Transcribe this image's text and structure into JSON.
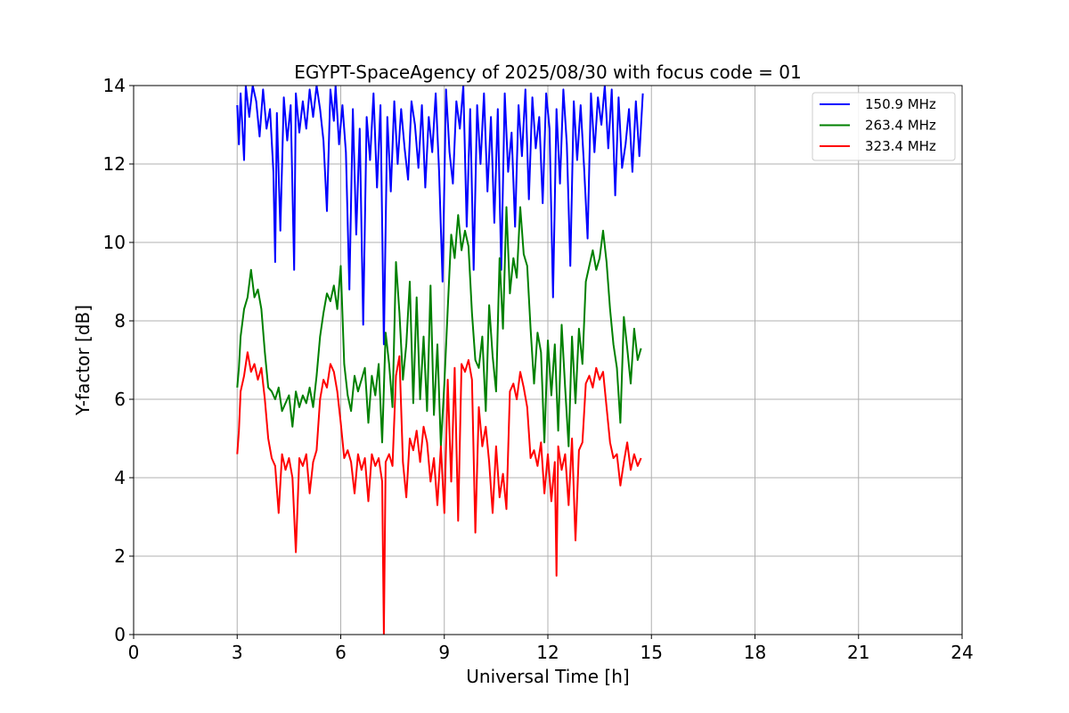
{
  "chart_data": {
    "type": "line",
    "title": "EGYPT-SpaceAgency of 2025/08/30 with focus code = 01",
    "xlabel": "Universal Time [h]",
    "ylabel": "Y-factor [dB]",
    "xlim": [
      0,
      24
    ],
    "ylim": [
      0,
      14
    ],
    "xticks": [
      0,
      3,
      6,
      9,
      12,
      15,
      18,
      21,
      24
    ],
    "yticks": [
      0,
      2,
      4,
      6,
      8,
      10,
      12,
      14
    ],
    "grid": true,
    "legend_position": "top-right",
    "series": [
      {
        "name": "150.9 MHz",
        "color": "#0000ff",
        "x": [
          3.0,
          3.05,
          3.1,
          3.2,
          3.25,
          3.35,
          3.45,
          3.55,
          3.65,
          3.75,
          3.85,
          3.95,
          4.05,
          4.1,
          4.15,
          4.25,
          4.35,
          4.45,
          4.55,
          4.65,
          4.7,
          4.8,
          4.9,
          5.0,
          5.1,
          5.2,
          5.3,
          5.4,
          5.5,
          5.6,
          5.7,
          5.8,
          5.85,
          5.95,
          6.05,
          6.15,
          6.25,
          6.35,
          6.45,
          6.55,
          6.65,
          6.75,
          6.85,
          6.95,
          7.05,
          7.15,
          7.25,
          7.35,
          7.45,
          7.55,
          7.65,
          7.75,
          7.85,
          7.95,
          8.05,
          8.15,
          8.25,
          8.35,
          8.45,
          8.55,
          8.65,
          8.75,
          8.85,
          8.95,
          9.05,
          9.15,
          9.25,
          9.35,
          9.45,
          9.55,
          9.65,
          9.75,
          9.85,
          9.95,
          10.05,
          10.15,
          10.25,
          10.35,
          10.45,
          10.55,
          10.65,
          10.75,
          10.85,
          10.95,
          11.05,
          11.15,
          11.25,
          11.35,
          11.45,
          11.55,
          11.65,
          11.75,
          11.85,
          11.95,
          12.05,
          12.15,
          12.25,
          12.35,
          12.45,
          12.55,
          12.65,
          12.75,
          12.85,
          12.95,
          13.05,
          13.15,
          13.25,
          13.35,
          13.45,
          13.55,
          13.65,
          13.75,
          13.85,
          13.95,
          14.05,
          14.15,
          14.25,
          14.35,
          14.45,
          14.55,
          14.65,
          14.75
        ],
        "y": [
          13.5,
          12.5,
          13.8,
          12.1,
          14.0,
          13.2,
          14.0,
          13.6,
          12.7,
          13.9,
          12.9,
          13.4,
          11.8,
          9.5,
          13.3,
          10.3,
          13.7,
          12.6,
          13.5,
          9.3,
          13.8,
          12.8,
          13.6,
          12.9,
          13.9,
          13.2,
          14.0,
          13.4,
          12.6,
          10.8,
          13.9,
          13.1,
          14.0,
          12.5,
          13.5,
          12.3,
          8.8,
          13.4,
          10.2,
          12.9,
          7.9,
          13.2,
          12.1,
          13.8,
          11.4,
          13.5,
          7.4,
          13.2,
          11.3,
          13.6,
          12.0,
          13.4,
          12.4,
          11.6,
          13.6,
          13.0,
          11.9,
          13.5,
          11.4,
          13.2,
          12.3,
          13.8,
          11.8,
          9.0,
          13.9,
          12.3,
          11.5,
          13.6,
          12.9,
          14.0,
          10.4,
          13.4,
          9.3,
          13.5,
          12.0,
          13.8,
          11.3,
          13.2,
          10.5,
          13.4,
          9.3,
          13.8,
          11.8,
          12.8,
          10.4,
          13.5,
          12.2,
          13.9,
          11.1,
          13.7,
          12.4,
          13.2,
          11.0,
          13.8,
          12.9,
          8.6,
          13.4,
          11.5,
          13.9,
          12.5,
          9.4,
          13.6,
          12.1,
          13.5,
          11.9,
          10.1,
          13.8,
          12.3,
          13.7,
          13.0,
          14.0,
          12.4,
          13.9,
          11.2,
          13.7,
          11.9,
          12.5,
          13.4,
          11.8,
          13.6,
          12.2,
          13.8
        ]
      },
      {
        "name": "263.4 MHz",
        "color": "#008000",
        "x": [
          3.0,
          3.05,
          3.1,
          3.2,
          3.3,
          3.4,
          3.5,
          3.6,
          3.7,
          3.8,
          3.9,
          4.0,
          4.1,
          4.2,
          4.3,
          4.4,
          4.5,
          4.6,
          4.7,
          4.8,
          4.9,
          5.0,
          5.1,
          5.2,
          5.3,
          5.4,
          5.5,
          5.6,
          5.7,
          5.8,
          5.9,
          6.0,
          6.1,
          6.2,
          6.3,
          6.4,
          6.5,
          6.6,
          6.7,
          6.8,
          6.9,
          7.0,
          7.1,
          7.2,
          7.3,
          7.4,
          7.5,
          7.6,
          7.7,
          7.8,
          7.9,
          8.0,
          8.1,
          8.2,
          8.3,
          8.4,
          8.5,
          8.6,
          8.7,
          8.8,
          8.9,
          9.0,
          9.1,
          9.2,
          9.3,
          9.4,
          9.5,
          9.6,
          9.7,
          9.8,
          9.9,
          10.0,
          10.1,
          10.2,
          10.3,
          10.4,
          10.5,
          10.6,
          10.7,
          10.8,
          10.9,
          11.0,
          11.1,
          11.2,
          11.3,
          11.4,
          11.5,
          11.6,
          11.7,
          11.8,
          11.9,
          12.0,
          12.1,
          12.2,
          12.3,
          12.4,
          12.5,
          12.6,
          12.7,
          12.8,
          12.9,
          13.0,
          13.1,
          13.2,
          13.3,
          13.4,
          13.5,
          13.6,
          13.7,
          13.8,
          13.9,
          14.0,
          14.1,
          14.2,
          14.3,
          14.4,
          14.5,
          14.6,
          14.7
        ],
        "y": [
          6.3,
          6.8,
          7.6,
          8.3,
          8.6,
          9.3,
          8.6,
          8.8,
          8.3,
          7.2,
          6.3,
          6.2,
          6.0,
          6.3,
          5.7,
          5.9,
          6.1,
          5.3,
          6.2,
          5.8,
          6.1,
          5.9,
          6.3,
          5.8,
          6.6,
          7.6,
          8.2,
          8.7,
          8.5,
          8.9,
          8.3,
          9.4,
          6.9,
          6.1,
          5.7,
          6.6,
          6.2,
          6.5,
          6.8,
          5.4,
          6.6,
          6.1,
          6.9,
          4.9,
          7.7,
          6.9,
          5.8,
          9.5,
          8.2,
          6.5,
          7.4,
          9.0,
          5.9,
          8.6,
          6.0,
          7.6,
          5.7,
          8.9,
          5.6,
          7.4,
          4.8,
          6.4,
          8.3,
          10.2,
          9.6,
          10.7,
          9.8,
          10.3,
          9.9,
          8.2,
          7.0,
          6.8,
          7.6,
          5.7,
          8.4,
          7.1,
          6.2,
          9.6,
          7.8,
          10.9,
          8.7,
          9.6,
          9.1,
          10.9,
          9.7,
          9.4,
          7.8,
          6.4,
          7.7,
          7.2,
          4.9,
          7.5,
          6.1,
          7.4,
          5.2,
          7.9,
          6.3,
          4.8,
          7.6,
          5.9,
          7.8,
          6.9,
          9.0,
          9.4,
          9.8,
          9.3,
          9.6,
          10.3,
          9.5,
          8.3,
          7.4,
          6.8,
          5.4,
          8.1,
          7.3,
          6.4,
          7.8,
          7.0,
          7.3
        ]
      },
      {
        "name": "323.4 MHz",
        "color": "#ff0000",
        "x": [
          3.0,
          3.05,
          3.1,
          3.2,
          3.3,
          3.4,
          3.5,
          3.6,
          3.7,
          3.8,
          3.9,
          4.0,
          4.1,
          4.2,
          4.3,
          4.4,
          4.5,
          4.6,
          4.7,
          4.8,
          4.9,
          5.0,
          5.1,
          5.2,
          5.3,
          5.4,
          5.5,
          5.6,
          5.7,
          5.8,
          5.9,
          6.0,
          6.1,
          6.2,
          6.3,
          6.4,
          6.5,
          6.6,
          6.7,
          6.8,
          6.9,
          7.0,
          7.1,
          7.2,
          7.25,
          7.3,
          7.4,
          7.5,
          7.6,
          7.7,
          7.8,
          7.9,
          8.0,
          8.1,
          8.2,
          8.3,
          8.4,
          8.5,
          8.6,
          8.7,
          8.8,
          8.9,
          9.0,
          9.1,
          9.2,
          9.3,
          9.4,
          9.5,
          9.6,
          9.7,
          9.8,
          9.9,
          10.0,
          10.1,
          10.2,
          10.3,
          10.4,
          10.5,
          10.6,
          10.7,
          10.8,
          10.9,
          11.0,
          11.1,
          11.2,
          11.3,
          11.4,
          11.5,
          11.6,
          11.7,
          11.8,
          11.9,
          12.0,
          12.1,
          12.2,
          12.25,
          12.3,
          12.4,
          12.5,
          12.6,
          12.7,
          12.8,
          12.9,
          13.0,
          13.1,
          13.2,
          13.3,
          13.4,
          13.5,
          13.6,
          13.7,
          13.8,
          13.9,
          14.0,
          14.1,
          14.2,
          14.3,
          14.4,
          14.5,
          14.6,
          14.7
        ],
        "y": [
          4.6,
          5.2,
          6.2,
          6.6,
          7.2,
          6.7,
          6.9,
          6.5,
          6.8,
          6.0,
          5.0,
          4.5,
          4.3,
          3.1,
          4.6,
          4.2,
          4.5,
          4.0,
          2.1,
          4.5,
          4.3,
          4.6,
          3.6,
          4.4,
          4.7,
          6.0,
          6.5,
          6.3,
          6.9,
          6.7,
          6.2,
          5.4,
          4.5,
          4.7,
          4.4,
          3.6,
          4.6,
          4.2,
          4.5,
          3.4,
          4.6,
          4.3,
          4.5,
          3.9,
          0.0,
          4.4,
          4.6,
          4.3,
          6.6,
          7.1,
          4.4,
          3.5,
          5.0,
          4.7,
          5.2,
          4.4,
          5.3,
          4.9,
          3.9,
          4.5,
          3.3,
          4.8,
          3.1,
          6.5,
          3.9,
          6.8,
          2.9,
          6.9,
          6.7,
          7.0,
          6.5,
          2.6,
          5.8,
          4.8,
          5.3,
          4.4,
          3.1,
          4.8,
          3.5,
          4.1,
          3.2,
          6.2,
          6.4,
          6.0,
          6.7,
          6.3,
          5.8,
          4.5,
          4.7,
          4.3,
          4.9,
          3.6,
          4.6,
          3.4,
          4.4,
          1.5,
          4.8,
          4.2,
          4.6,
          3.3,
          5.0,
          2.4,
          4.7,
          4.9,
          6.4,
          6.6,
          6.3,
          6.8,
          6.5,
          6.7,
          5.8,
          4.9,
          4.5,
          4.6,
          3.8,
          4.4,
          4.9,
          4.2,
          4.6,
          4.3,
          4.5
        ]
      }
    ]
  }
}
